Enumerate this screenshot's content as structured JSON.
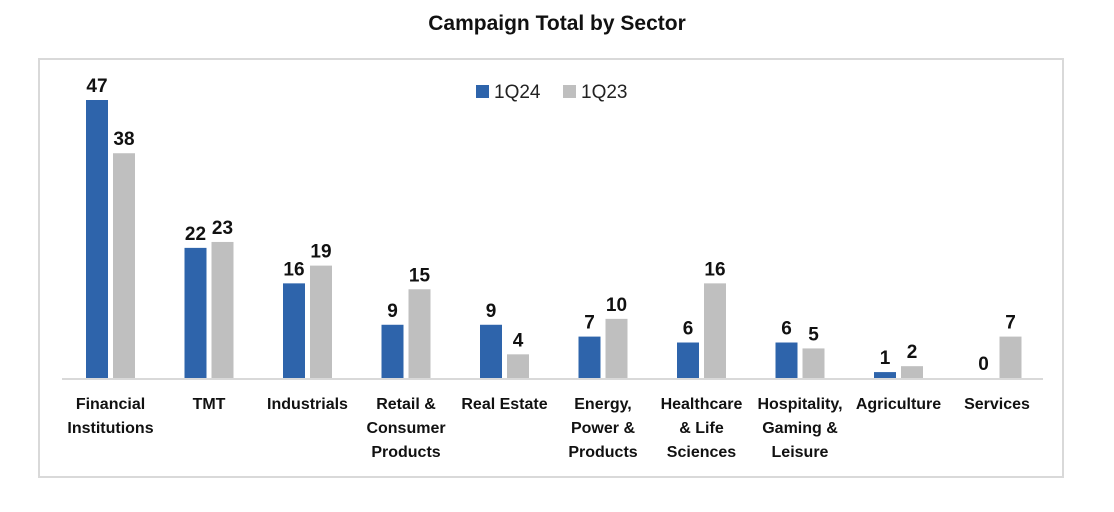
{
  "chart_data": {
    "type": "bar",
    "title": "Campaign Total by Sector",
    "xlabel": "",
    "ylabel": "",
    "ylim": [
      0,
      47
    ],
    "grid": false,
    "legend_position": "top-center",
    "categories": [
      [
        "Financial",
        "Institutions"
      ],
      [
        "TMT"
      ],
      [
        "Industrials"
      ],
      [
        "Retail &",
        "Consumer",
        "Products"
      ],
      [
        "Real Estate"
      ],
      [
        "Energy,",
        "Power &",
        "Products"
      ],
      [
        "Healthcare",
        "& Life",
        "Sciences"
      ],
      [
        "Hospitality,",
        "Gaming &",
        "Leisure"
      ],
      [
        "Agriculture"
      ],
      [
        "Services"
      ]
    ],
    "series": [
      {
        "name": "1Q24",
        "color": "#2e64ab",
        "values": [
          47,
          22,
          16,
          9,
          9,
          7,
          6,
          6,
          1,
          0
        ]
      },
      {
        "name": "1Q23",
        "color": "#bfbfbf",
        "values": [
          38,
          23,
          19,
          15,
          4,
          10,
          16,
          5,
          2,
          7
        ]
      }
    ],
    "axis_color": "#d9d9d9"
  }
}
